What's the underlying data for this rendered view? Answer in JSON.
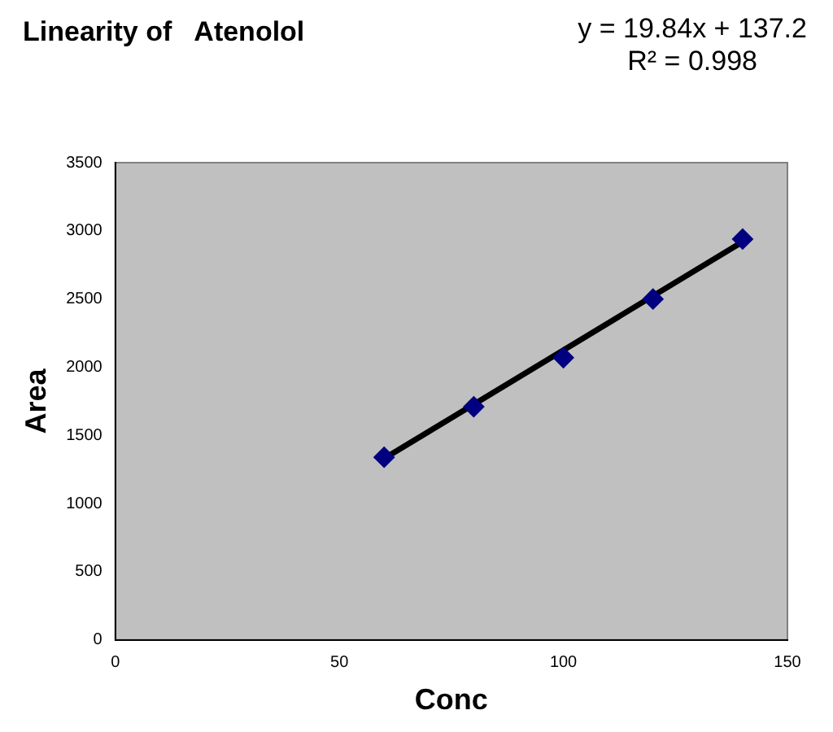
{
  "chart_data": {
    "type": "scatter",
    "title": "Linearity of   Atenolol",
    "xlabel": "Conc",
    "ylabel": "Area",
    "annotations": [
      "y = 19.84x + 137.2",
      "R² = 0.998"
    ],
    "series": [
      {
        "color": "#000080",
        "x": [
          60,
          80,
          100,
          120,
          140
        ],
        "values": [
          1340,
          1710,
          2070,
          2500,
          2940
        ],
        "marker": "diamond"
      },
      {
        "type": "line",
        "color": "#000000",
        "x": [
          60,
          140
        ],
        "values": [
          1330,
          2920
        ],
        "marker": "none",
        "line_style": "solid"
      }
    ],
    "xlim": [
      0,
      150
    ],
    "xticks": [
      0,
      50,
      100,
      150
    ],
    "ylim": [
      0,
      3500
    ],
    "yticks": [
      0,
      500,
      1000,
      1500,
      2000,
      2500,
      3000,
      3500
    ],
    "grid": false,
    "legend": false
  }
}
